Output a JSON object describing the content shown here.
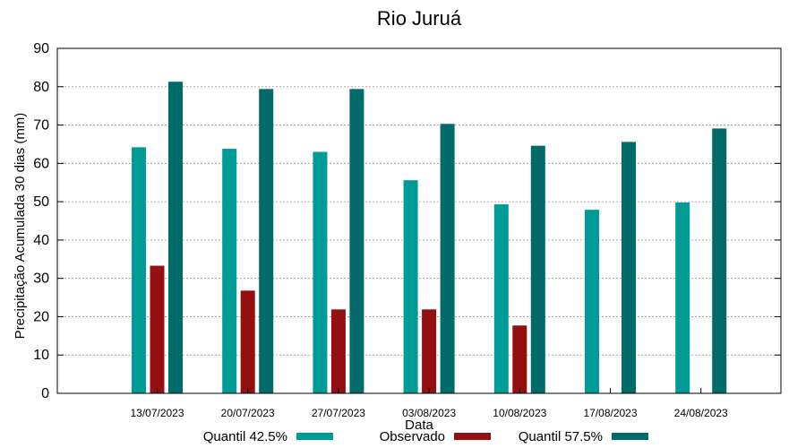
{
  "chart_data": {
    "type": "bar",
    "title": "Rio Juruá",
    "xlabel": "Data",
    "ylabel": "Precipitação Acumulada 30 dias (mm)",
    "ylim": [
      0,
      90
    ],
    "yticks": [
      0,
      10,
      20,
      30,
      40,
      50,
      60,
      70,
      80,
      90
    ],
    "grid": true,
    "legend_position": "bottom",
    "categories": [
      "13/07/2023",
      "20/07/2023",
      "27/07/2023",
      "03/08/2023",
      "10/08/2023",
      "17/08/2023",
      "24/08/2023"
    ],
    "series": [
      {
        "name": "Quantil 42.5%",
        "color": "#009b95",
        "values": [
          64.2,
          63.8,
          63.0,
          55.6,
          49.3,
          47.9,
          49.8
        ]
      },
      {
        "name": "Observado",
        "color": "#941010",
        "values": [
          33.3,
          26.8,
          21.9,
          21.9,
          17.7,
          null,
          null
        ]
      },
      {
        "name": "Quantil 57.5%",
        "color": "#006b68",
        "values": [
          81.3,
          79.4,
          79.4,
          70.3,
          64.6,
          65.6,
          69.1
        ]
      }
    ]
  }
}
